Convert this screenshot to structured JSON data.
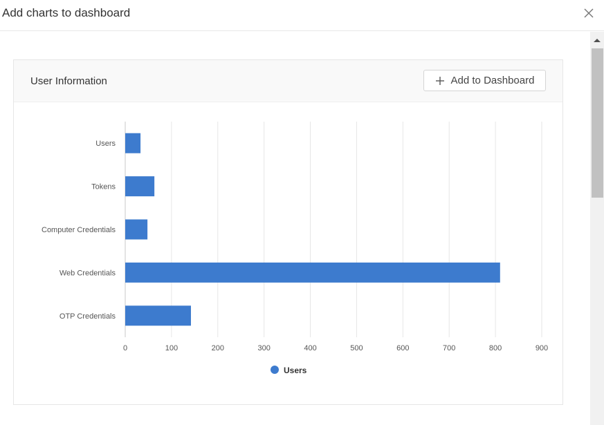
{
  "modal": {
    "title": "Add charts to dashboard"
  },
  "card": {
    "title": "User Information",
    "add_button_label": "Add to Dashboard"
  },
  "colors": {
    "bar": "#3d7bce",
    "grid": "#e6e6e6",
    "axis_text": "#555555"
  },
  "icons": {
    "close": "close-icon",
    "add": "plus-icon"
  },
  "chart_data": {
    "type": "bar",
    "orientation": "horizontal",
    "categories": [
      "Users",
      "Tokens",
      "Computer Credentials",
      "Web Credentials",
      "OTP Credentials"
    ],
    "series": [
      {
        "name": "Users",
        "values": [
          33,
          63,
          48,
          810,
          142
        ]
      }
    ],
    "xlim": [
      0,
      900
    ],
    "xticks": [
      0,
      100,
      200,
      300,
      400,
      500,
      600,
      700,
      800,
      900
    ],
    "grid": true,
    "legend": "bottom-center"
  }
}
